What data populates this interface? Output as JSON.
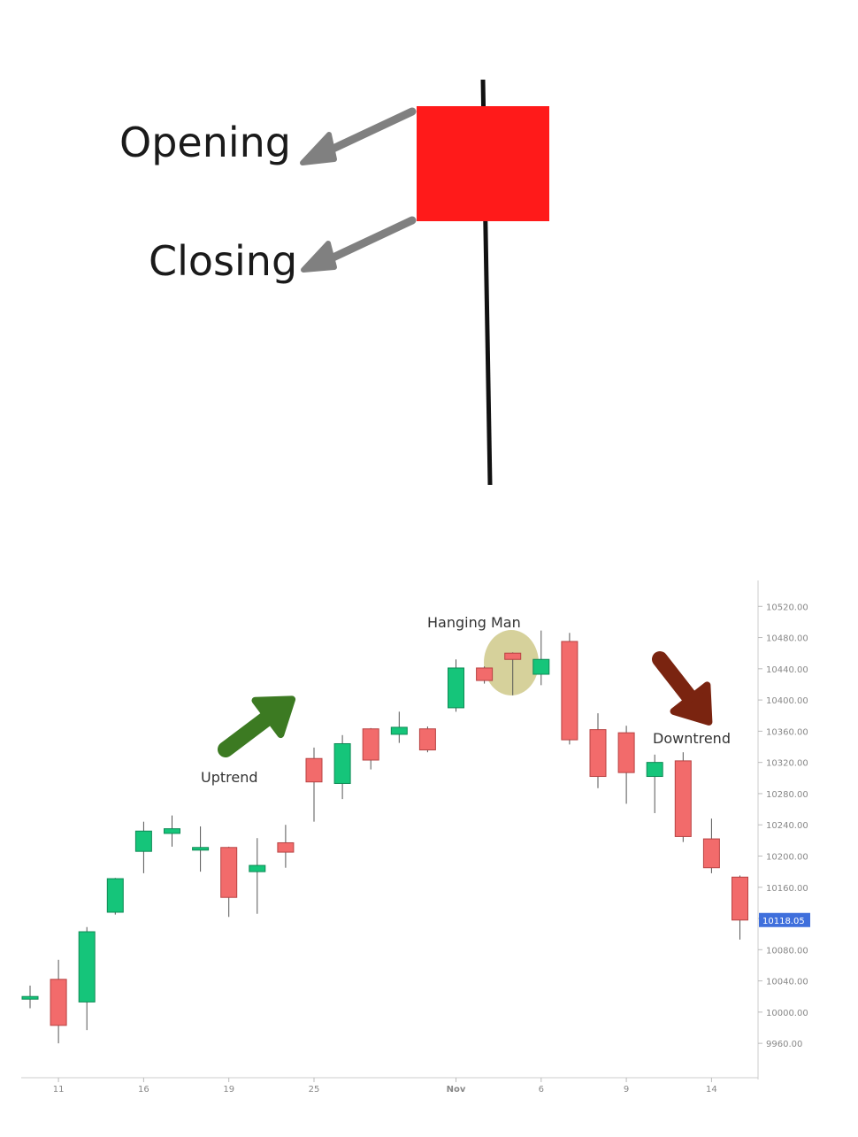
{
  "diagram": {
    "labels": {
      "opening": "Opening",
      "closing": "Closing"
    },
    "candle_color": "#ff1a1a",
    "arrow_color": "#808080",
    "wick_color": "#111111"
  },
  "colors": {
    "up": "#15c57a",
    "down": "#f26b6b",
    "last_price_bg": "#3f6fdc",
    "uptrend_arrow": "#3c7a22",
    "downtrend_arrow": "#7a2410",
    "highlight": "#c8c17a"
  },
  "chart_data": {
    "type": "candlestick",
    "y_ticks": [
      9960,
      10000,
      10040,
      10080,
      10120,
      10160,
      10200,
      10240,
      10280,
      10320,
      10360,
      10400,
      10440,
      10480,
      10520
    ],
    "y_tick_labels": [
      "9960.00",
      "10000.00",
      "10040.00",
      "10080.00",
      "10120.00",
      "10160.00",
      "10200.00",
      "10240.00",
      "10280.00",
      "10320.00",
      "10360.00",
      "10400.00",
      "10440.00",
      "10480.00",
      "10520.00"
    ],
    "ylim": [
      9925,
      10560
    ],
    "x_labels": [
      {
        "label": "11",
        "index": 1
      },
      {
        "label": "16",
        "index": 4
      },
      {
        "label": "19",
        "index": 7
      },
      {
        "label": "25",
        "index": 10
      },
      {
        "label": "Nov",
        "index": 15,
        "bold": true
      },
      {
        "label": "6",
        "index": 18
      },
      {
        "label": "9",
        "index": 21
      },
      {
        "label": "14",
        "index": 24
      }
    ],
    "last_price": {
      "value": 10118.05,
      "label": "10118.05"
    },
    "candles": [
      {
        "o": 10017,
        "h": 10034,
        "l": 10005,
        "c": 10020
      },
      {
        "o": 10042,
        "h": 10067,
        "l": 9960,
        "c": 9983
      },
      {
        "o": 10013,
        "h": 10109,
        "l": 9977,
        "c": 10103
      },
      {
        "o": 10128,
        "h": 10172,
        "l": 10125,
        "c": 10171
      },
      {
        "o": 10206,
        "h": 10244,
        "l": 10178,
        "c": 10232
      },
      {
        "o": 10229,
        "h": 10252,
        "l": 10212,
        "c": 10235
      },
      {
        "o": 10211,
        "h": 10238,
        "l": 10180,
        "c": 10211
      },
      {
        "o": 10211,
        "h": 10212,
        "l": 10122,
        "c": 10147
      },
      {
        "o": 10180,
        "h": 10223,
        "l": 10126,
        "c": 10188
      },
      {
        "o": 10217,
        "h": 10240,
        "l": 10185,
        "c": 10205
      },
      {
        "o": 10325,
        "h": 10339,
        "l": 10244,
        "c": 10295
      },
      {
        "o": 10293,
        "h": 10355,
        "l": 10273,
        "c": 10344
      },
      {
        "o": 10363,
        "h": 10364,
        "l": 10311,
        "c": 10323
      },
      {
        "o": 10356,
        "h": 10385,
        "l": 10345,
        "c": 10365
      },
      {
        "o": 10363,
        "h": 10366,
        "l": 10333,
        "c": 10336
      },
      {
        "o": 10390,
        "h": 10452,
        "l": 10385,
        "c": 10441
      },
      {
        "o": 10441,
        "h": 10443,
        "l": 10421,
        "c": 10425
      },
      {
        "o": 10460,
        "h": 10461,
        "l": 10406,
        "c": 10452
      },
      {
        "o": 10433,
        "h": 10489,
        "l": 10419,
        "c": 10452
      },
      {
        "o": 10475,
        "h": 10486,
        "l": 10343,
        "c": 10349
      },
      {
        "o": 10362,
        "h": 10383,
        "l": 10287,
        "c": 10302
      },
      {
        "o": 10358,
        "h": 10367,
        "l": 10267,
        "c": 10307
      },
      {
        "o": 10302,
        "h": 10330,
        "l": 10255,
        "c": 10320
      },
      {
        "o": 10322,
        "h": 10333,
        "l": 10218,
        "c": 10225
      },
      {
        "o": 10222,
        "h": 10248,
        "l": 10178,
        "c": 10185
      },
      {
        "o": 10173,
        "h": 10175,
        "l": 10093,
        "c": 10118
      }
    ],
    "annotations": {
      "uptrend": "Uptrend",
      "hanging_man": "Hanging Man",
      "downtrend": "Downtrend"
    }
  }
}
